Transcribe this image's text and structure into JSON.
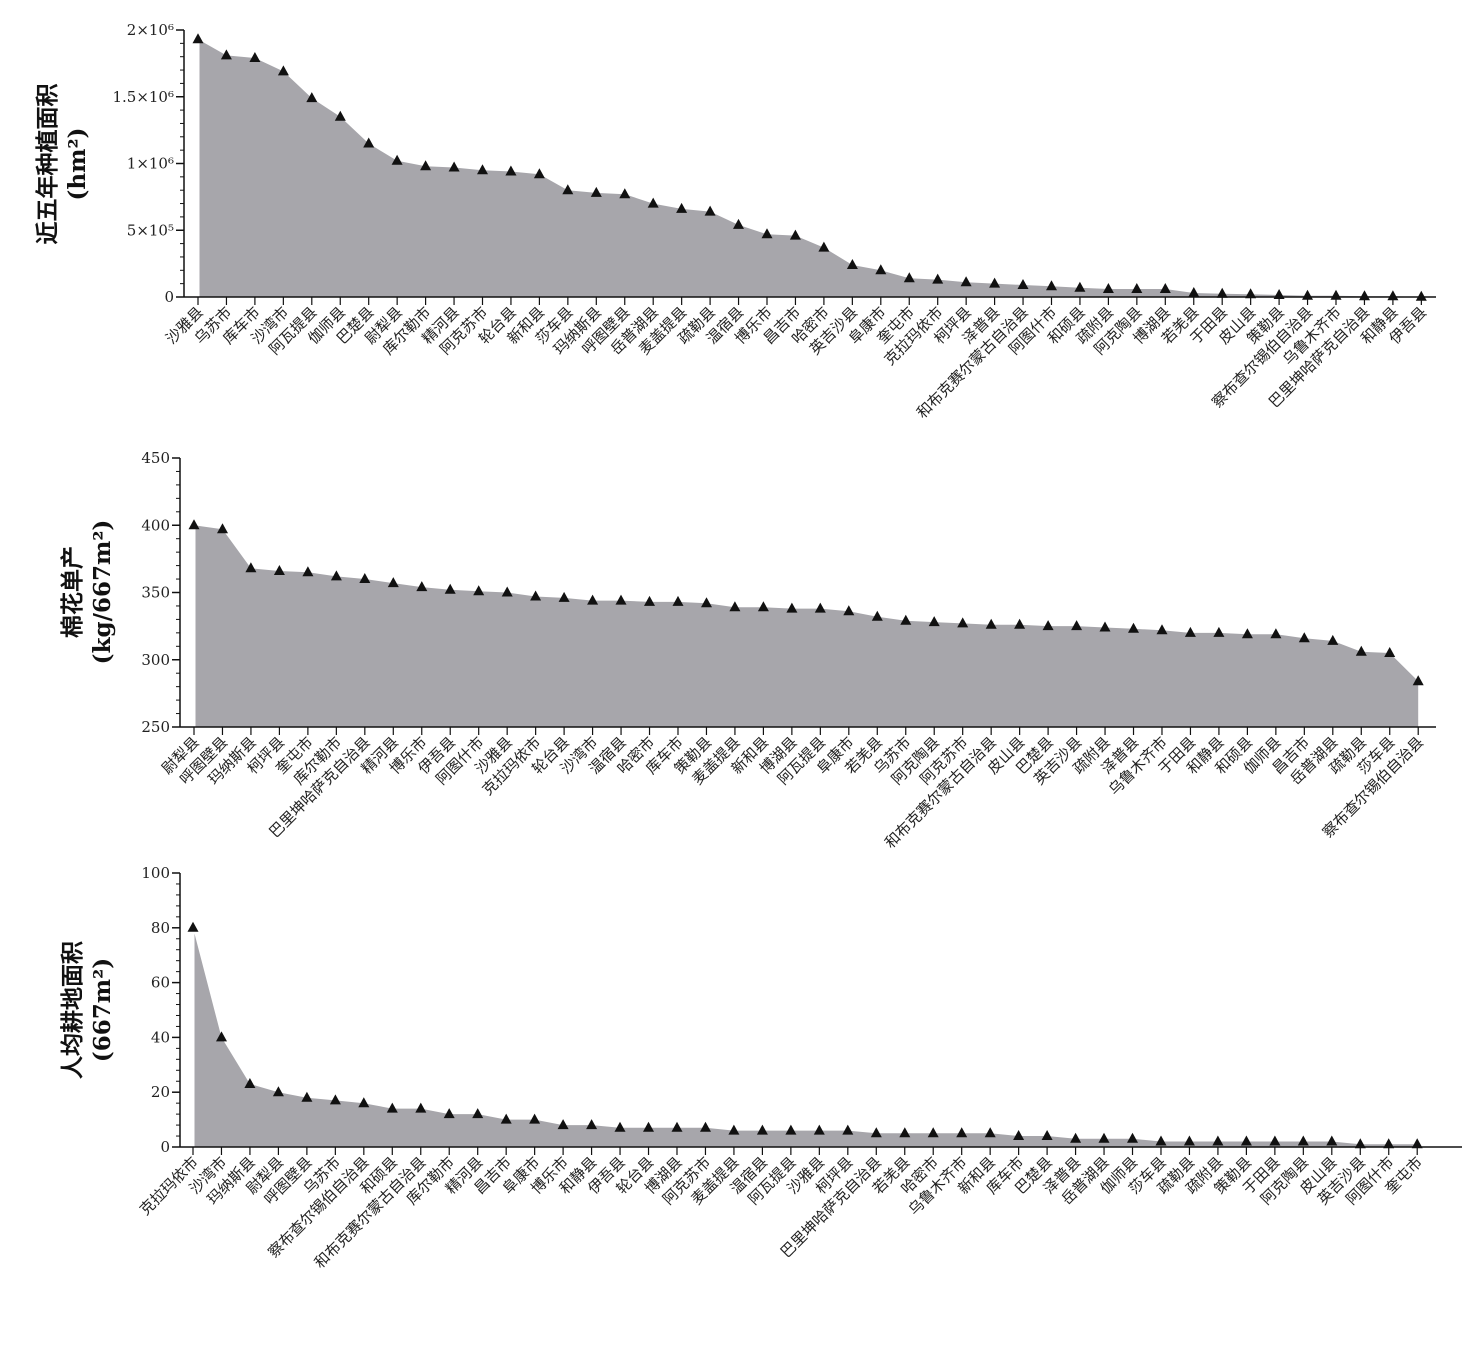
{
  "chart_data": [
    {
      "type": "area",
      "ylabel": "近五年种植面积",
      "yunit": "(hm²)",
      "ylim": [
        0,
        2000000
      ],
      "yticks": [
        0,
        500000,
        1000000,
        1500000,
        2000000
      ],
      "ytick_labels": [
        "0",
        "5×10⁵",
        "1×10⁶",
        "1.5×10⁶",
        "2×10⁶"
      ],
      "categories": [
        "沙雅县",
        "乌苏市",
        "库车市",
        "沙湾市",
        "阿瓦提县",
        "伽师县",
        "巴楚县",
        "尉犁县",
        "库尔勒市",
        "精河县",
        "阿克苏市",
        "轮台县",
        "新和县",
        "莎车县",
        "玛纳斯县",
        "呼图壁县",
        "岳普湖县",
        "麦盖提县",
        "疏勒县",
        "温宿县",
        "博乐市",
        "昌吉市",
        "哈密市",
        "英吉沙县",
        "阜康市",
        "奎屯市",
        "克拉玛依市",
        "柯坪县",
        "泽普县",
        "和布克赛尔蒙古自治县",
        "阿图什市",
        "和硕县",
        "疏附县",
        "阿克陶县",
        "博湖县",
        "若羌县",
        "于田县",
        "皮山县",
        "策勒县",
        "察布查尔锡伯自治县",
        "乌鲁木齐市",
        "巴里坤哈萨克自治县",
        "和静县",
        "伊吾县"
      ],
      "values": [
        1930000,
        1810000,
        1790000,
        1690000,
        1490000,
        1350000,
        1150000,
        1020000,
        980000,
        970000,
        950000,
        940000,
        920000,
        800000,
        780000,
        770000,
        700000,
        660000,
        640000,
        540000,
        470000,
        460000,
        370000,
        240000,
        200000,
        140000,
        130000,
        110000,
        100000,
        90000,
        80000,
        70000,
        60000,
        60000,
        60000,
        30000,
        25000,
        20000,
        15000,
        10000,
        10000,
        5000,
        5000,
        2000
      ]
    },
    {
      "type": "area",
      "ylabel": "棉花单产",
      "yunit": "(kg/667m²)",
      "ylim": [
        250,
        450
      ],
      "yticks": [
        250,
        300,
        350,
        400,
        450
      ],
      "ytick_labels": [
        "250",
        "300",
        "350",
        "400",
        "450"
      ],
      "categories": [
        "尉犁县",
        "呼图壁县",
        "玛纳斯县",
        "柯坪县",
        "奎屯市",
        "库尔勒市",
        "巴里坤哈萨克自治县",
        "精河县",
        "博乐市",
        "伊吾县",
        "阿图什市",
        "沙雅县",
        "克拉玛依市",
        "轮台县",
        "沙湾市",
        "温宿县",
        "哈密市",
        "库车市",
        "策勒县",
        "麦盖提县",
        "新和县",
        "博湖县",
        "阿瓦提县",
        "阜康市",
        "若羌县",
        "乌苏市",
        "阿克陶县",
        "阿克苏市",
        "和布克赛尔蒙古自治县",
        "皮山县",
        "巴楚县",
        "英吉沙县",
        "疏附县",
        "泽普县",
        "乌鲁木齐市",
        "于田县",
        "和静县",
        "和硕县",
        "伽师县",
        "昌吉市",
        "岳普湖县",
        "疏勒县",
        "莎车县",
        "察布查尔锡伯自治县"
      ],
      "values": [
        400,
        397,
        368,
        366,
        365,
        362,
        360,
        357,
        354,
        352,
        351,
        350,
        347,
        346,
        344,
        344,
        343,
        343,
        342,
        339,
        339,
        338,
        338,
        336,
        332,
        329,
        328,
        327,
        326,
        326,
        325,
        325,
        324,
        323,
        322,
        320,
        320,
        319,
        319,
        316,
        314,
        306,
        305,
        284
      ]
    },
    {
      "type": "area",
      "ylabel": "人均耕地面积",
      "yunit": "(667m²)",
      "ylim": [
        0,
        100
      ],
      "yticks": [
        0,
        20,
        40,
        60,
        80,
        100
      ],
      "ytick_labels": [
        "0",
        "20",
        "40",
        "60",
        "80",
        "100"
      ],
      "categories": [
        "克拉玛依市",
        "沙湾市",
        "玛纳斯县",
        "尉犁县",
        "呼图壁县",
        "乌苏市",
        "察布查尔锡伯自治县",
        "和硕县",
        "和布克赛尔蒙古自治县",
        "库尔勒市",
        "精河县",
        "昌吉市",
        "阜康市",
        "博乐市",
        "和静县",
        "伊吾县",
        "轮台县",
        "博湖县",
        "阿克苏市",
        "麦盖提县",
        "温宿县",
        "阿瓦提县",
        "沙雅县",
        "柯坪县",
        "巴里坤哈萨克自治县",
        "若羌县",
        "哈密市",
        "乌鲁木齐市",
        "新和县",
        "库车市",
        "巴楚县",
        "泽普县",
        "岳普湖县",
        "伽师县",
        "莎车县",
        "疏勒县",
        "疏附县",
        "策勒县",
        "于田县",
        "阿克陶县",
        "皮山县",
        "英吉沙县",
        "阿图什市",
        "奎屯市"
      ],
      "values": [
        80,
        40,
        23,
        20,
        18,
        17,
        16,
        14,
        14,
        12,
        12,
        10,
        10,
        8,
        8,
        7,
        7,
        7,
        7,
        6,
        6,
        6,
        6,
        6,
        5,
        5,
        5,
        5,
        5,
        4,
        4,
        3,
        3,
        3,
        2,
        2,
        2,
        2,
        2,
        2,
        2,
        1,
        1,
        1
      ]
    }
  ]
}
